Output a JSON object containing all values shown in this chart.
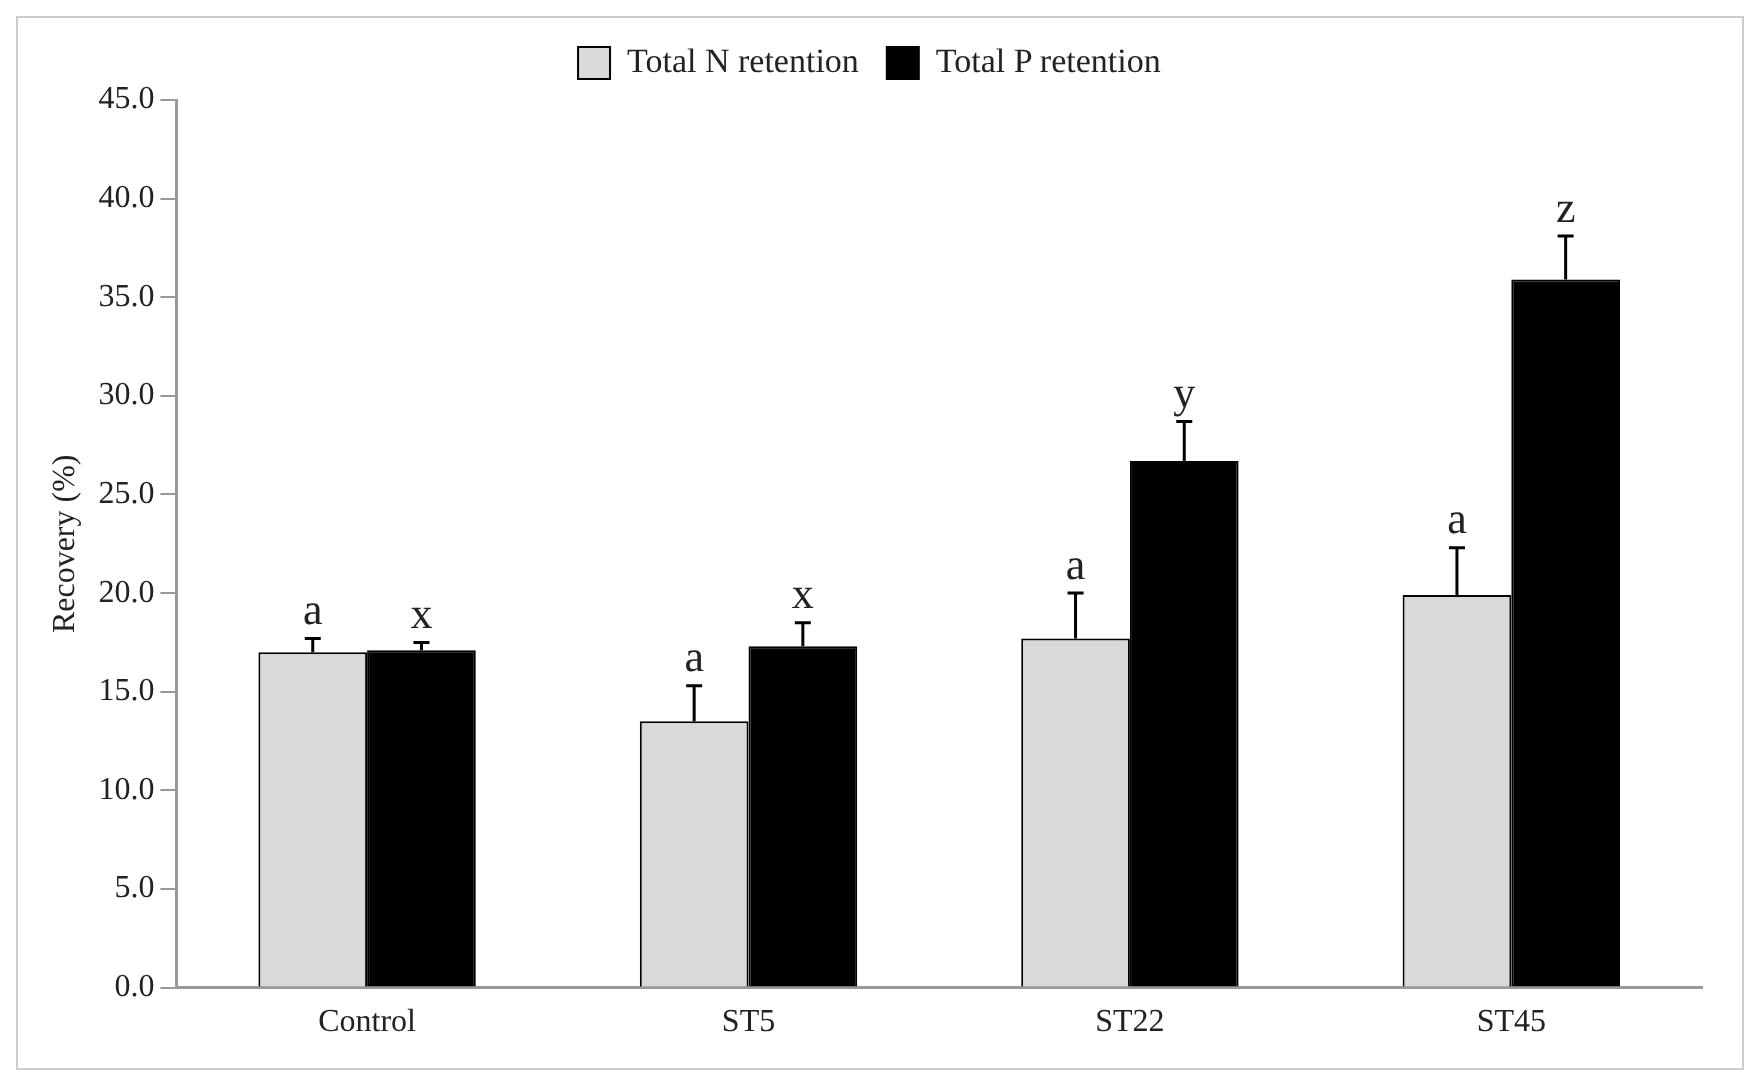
{
  "chart_data": {
    "type": "bar",
    "ylabel": "Recovery (%)",
    "categories": [
      "Control",
      "ST5",
      "ST22",
      "ST45"
    ],
    "series": [
      {
        "name": "Total N retention",
        "color": "#d9d9d9",
        "values": [
          17.0,
          13.5,
          17.7,
          19.9
        ],
        "errors": [
          0.7,
          1.8,
          2.3,
          2.4
        ]
      },
      {
        "name": "Total P retention",
        "color": "#000000",
        "values": [
          17.1,
          17.3,
          26.7,
          35.9
        ],
        "errors": [
          0.4,
          1.2,
          2.0,
          2.2
        ]
      }
    ],
    "ylim": [
      0,
      45
    ],
    "yticks": [
      {
        "value": 0,
        "label": "0.0"
      },
      {
        "value": 5,
        "label": "5.0"
      },
      {
        "value": 10,
        "label": "10.0"
      },
      {
        "value": 15,
        "label": "15.0"
      },
      {
        "value": 20,
        "label": "20.0"
      },
      {
        "value": 25,
        "label": "25.0"
      },
      {
        "value": 30,
        "label": "30.0"
      },
      {
        "value": 35,
        "label": "35.0"
      },
      {
        "value": 40,
        "label": "40.0"
      },
      {
        "value": 45,
        "label": "45.0"
      }
    ],
    "grid": false,
    "legend": "top",
    "annotations": [
      "a",
      "x",
      "a",
      "x",
      "a",
      "y",
      "a",
      "z"
    ]
  }
}
